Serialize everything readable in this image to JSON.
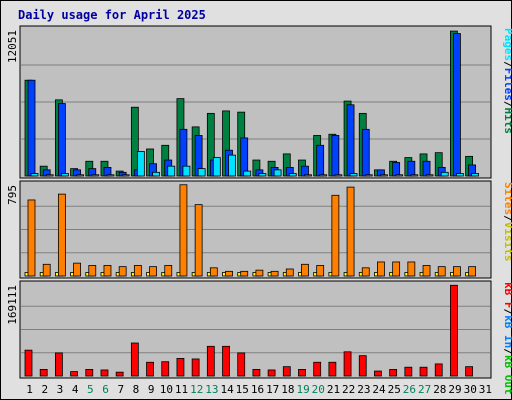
{
  "title": "Daily usage for April 2025",
  "colors": {
    "hits": "#008040",
    "files": "#0040ff",
    "pages": "#00e0ff",
    "visits": "#ffff00",
    "sites": "#ff8000",
    "kbin": "#0080ff",
    "kbout": "#00c000",
    "kbf": "#ff0000",
    "panel_bg": "#c0c0c0",
    "frame_bg": "#e0e0e0",
    "weekend_label": "#00805c",
    "weekday_label": "#000000"
  },
  "side_labels": {
    "top": [
      {
        "text": "Pages",
        "color": "#00e0ff"
      },
      {
        "text": "/",
        "color": "#000000"
      },
      {
        "text": "Files",
        "color": "#0040ff"
      },
      {
        "text": "/",
        "color": "#000000"
      },
      {
        "text": "Hits",
        "color": "#008040"
      }
    ],
    "middle": [
      {
        "text": "Sites",
        "color": "#ff8000"
      },
      {
        "text": "/",
        "color": "#000000"
      },
      {
        "text": "Visits",
        "color": "#c0c000"
      }
    ],
    "bottom": [
      {
        "text": "kB F",
        "color": "#ff0000"
      },
      {
        "text": "/",
        "color": "#000000"
      },
      {
        "text": "kB In",
        "color": "#0080ff"
      },
      {
        "text": "/",
        "color": "#000000"
      },
      {
        "text": "kB Out",
        "color": "#00c000"
      }
    ]
  },
  "chart_data": {
    "type": "bar",
    "title": "Daily usage for April 2025",
    "days": [
      "1",
      "2",
      "3",
      "4",
      "5",
      "6",
      "7",
      "8",
      "9",
      "10",
      "11",
      "12",
      "13",
      "14",
      "15",
      "16",
      "17",
      "18",
      "19",
      "20",
      "21",
      "22",
      "23",
      "24",
      "25",
      "26",
      "27",
      "28",
      "29",
      "30",
      "31"
    ],
    "weekend_days": [
      "5",
      "6",
      "12",
      "13",
      "19",
      "20",
      "26",
      "27"
    ],
    "panels": [
      {
        "id": "hits-files-pages",
        "ymax_label": "12051",
        "ymax": 12051,
        "series": [
          {
            "name": "Hits",
            "color": "#008040",
            "values": [
              7800,
              800,
              6200,
              600,
              1200,
              1200,
              400,
              5600,
              2200,
              2500,
              6300,
              4000,
              5100,
              5300,
              5200,
              1300,
              1200,
              1800,
              1300,
              3300,
              3400,
              6100,
              5100,
              500,
              1200,
              1500,
              1800,
              1900,
              11800,
              1600,
              0
            ]
          },
          {
            "name": "Files",
            "color": "#0040ff",
            "values": [
              7800,
              500,
              5900,
              500,
              600,
              700,
              300,
              500,
              1000,
              1300,
              3800,
              3300,
              1300,
              2100,
              3100,
              500,
              700,
              700,
              800,
              2500,
              3300,
              5800,
              3800,
              500,
              1100,
              1200,
              1200,
              700,
              11600,
              900,
              0
            ]
          },
          {
            "name": "Pages",
            "color": "#00e0ff",
            "values": [
              200,
              100,
              200,
              100,
              100,
              100,
              100,
              2000,
              300,
              800,
              800,
              600,
              1500,
              1700,
              400,
              200,
              500,
              200,
              100,
              100,
              100,
              200,
              100,
              100,
              100,
              100,
              100,
              300,
              200,
              200,
              0
            ]
          }
        ]
      },
      {
        "id": "sites-visits",
        "ymax_label": "795",
        "ymax": 795,
        "series": [
          {
            "name": "Visits",
            "color": "#ffff00",
            "values": [
              30,
              30,
              30,
              30,
              30,
              30,
              30,
              30,
              30,
              30,
              30,
              30,
              30,
              30,
              30,
              30,
              30,
              30,
              30,
              30,
              30,
              30,
              30,
              30,
              30,
              30,
              30,
              30,
              30,
              30,
              0
            ]
          },
          {
            "name": "Sites",
            "color": "#ff8000",
            "values": [
              650,
              100,
              700,
              110,
              90,
              90,
              80,
              90,
              80,
              90,
              780,
              610,
              70,
              40,
              40,
              50,
              40,
              60,
              100,
              90,
              690,
              760,
              70,
              120,
              120,
              120,
              90,
              80,
              80,
              80,
              0
            ]
          }
        ]
      },
      {
        "id": "kb",
        "ymax_label": "169111",
        "ymax": 169111,
        "series": [
          {
            "name": "kB F",
            "color": "#ff0000",
            "values": [
              47000,
              12000,
              42000,
              8000,
              12000,
              11000,
              7000,
              60000,
              25000,
              26000,
              32000,
              31000,
              54000,
              54000,
              42000,
              12000,
              11000,
              17000,
              12000,
              25000,
              25000,
              44000,
              37000,
              9000,
              12000,
              16000,
              16000,
              22000,
              165000,
              17000,
              0
            ]
          },
          {
            "name": "kB In",
            "color": "#0080ff",
            "values": [
              0,
              0,
              0,
              0,
              0,
              0,
              0,
              0,
              0,
              0,
              0,
              0,
              0,
              0,
              0,
              0,
              0,
              0,
              0,
              0,
              0,
              0,
              0,
              0,
              0,
              0,
              0,
              0,
              0,
              0,
              0
            ]
          },
          {
            "name": "kB Out",
            "color": "#00c000",
            "values": [
              0,
              0,
              0,
              0,
              0,
              0,
              0,
              0,
              0,
              0,
              0,
              0,
              0,
              0,
              0,
              0,
              0,
              0,
              0,
              0,
              0,
              0,
              0,
              0,
              0,
              0,
              0,
              0,
              0,
              0,
              0
            ]
          }
        ]
      }
    ]
  }
}
